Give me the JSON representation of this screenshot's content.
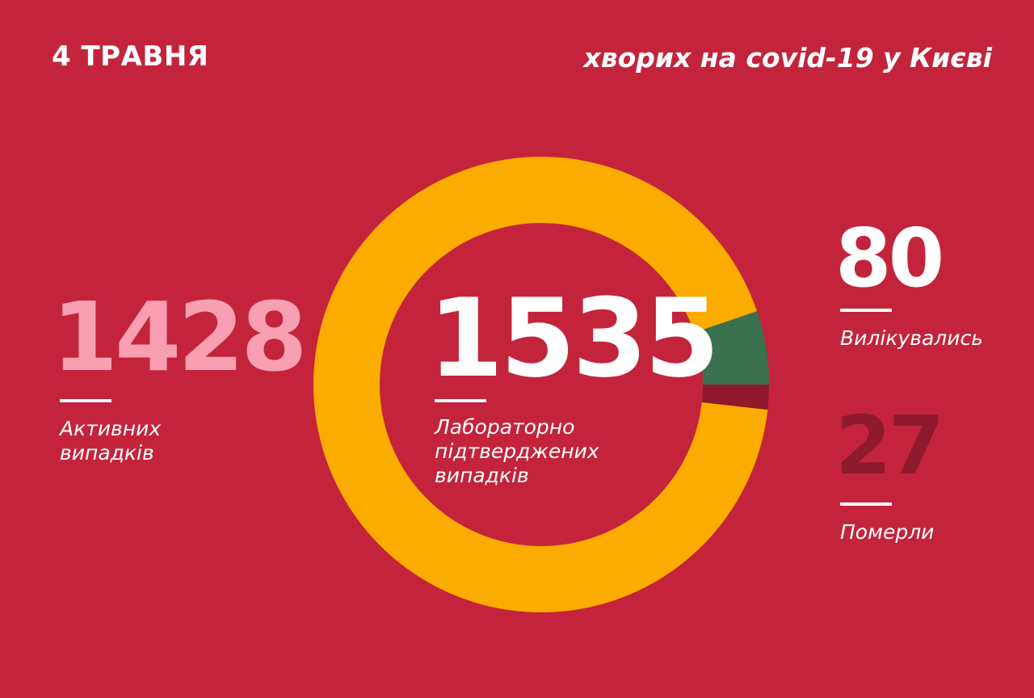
{
  "header": {
    "date": "4 ТРАВНЯ",
    "headline": "хворих на covid-19 у Києві"
  },
  "stats": {
    "active": {
      "value": "1428",
      "label_line1": "Активних",
      "label_line2": "випадків"
    },
    "total": {
      "value": "1535",
      "label_line1": "Лабораторно",
      "label_line2": "підтверджених",
      "label_line3": "випадків"
    },
    "recovered": {
      "value": "80",
      "label": "Вилікувались"
    },
    "deaths": {
      "value": "27",
      "label": "Померли"
    }
  },
  "colors": {
    "background": "#c3243c",
    "active": "#fcab00",
    "recovered": "#3b7150",
    "deaths": "#8e1a2b",
    "active_number": "#f8a0b2"
  },
  "chart_data": {
    "type": "pie",
    "donut": true,
    "categories": [
      "Активних випадків",
      "Вилікувались",
      "Померли"
    ],
    "values": [
      1428,
      80,
      27
    ],
    "total": 1535
  }
}
